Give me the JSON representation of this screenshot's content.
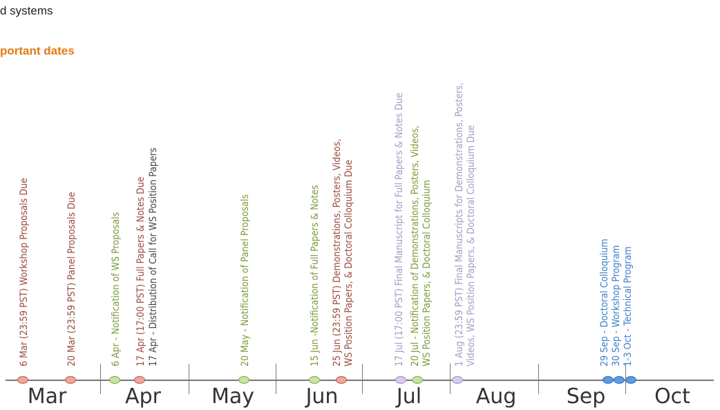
{
  "header": {
    "fragment": "d systems",
    "section_title": "portant dates"
  },
  "colors": {
    "red": "#9a4a3c",
    "green": "#7a9a3a",
    "dark": "#444444",
    "lavender": "#a69ac4",
    "blue": "#3a80c9"
  },
  "months": [
    "Mar",
    "Apr",
    "May",
    "Jun",
    "Jul",
    "Aug",
    "Sep",
    "Oct"
  ],
  "events": [
    {
      "name": "event-workshop-proposals",
      "color": "red",
      "lines": [
        "6 Mar (23:59 PST) Workshop Proposals Due"
      ]
    },
    {
      "name": "event-panel-proposals",
      "color": "red",
      "lines": [
        "20 Mar (23:59 PST) Panel Proposals Due"
      ]
    },
    {
      "name": "event-ws-notification",
      "color": "green",
      "lines": [
        "6 Apr - Notification of WS Proposals"
      ]
    },
    {
      "name": "event-full-papers-due",
      "color": "red",
      "lines": [
        "17 Apr (17:00 PST) Full Papers & Notes Due"
      ]
    },
    {
      "name": "event-call-distribution",
      "color": "dark",
      "lines": [
        "17 Apr - Distribution of Call for WS Position Papers"
      ]
    },
    {
      "name": "event-panel-notification",
      "color": "green",
      "lines": [
        "20 May - Notification of Panel Proposals"
      ]
    },
    {
      "name": "event-papers-notification",
      "color": "green",
      "lines": [
        "15 Jun -Notification of Full Papers & Notes"
      ]
    },
    {
      "name": "event-demos-due",
      "color": "red",
      "lines": [
        "25 Jun (23:59 PST) Demonstrations, Posters, Videos,",
        "WS Position Papers, & Doctoral Colloquium Due"
      ]
    },
    {
      "name": "event-final-manuscript",
      "color": "lavender",
      "lines": [
        "17 Jul (17:00 PST)  Final Manuscript for Full Papers & Notes Due"
      ]
    },
    {
      "name": "event-demos-notification",
      "color": "green",
      "lines": [
        "20 Jul - Notification of Demonstrations, Posters, Videos,",
        "WS Position Papers,  & Doctoral Colloquium"
      ]
    },
    {
      "name": "event-final-manuscripts-demos",
      "color": "lavender",
      "lines": [
        "1 Aug (23:59 PST) Final Manuscripts for Demonstrations, Posters,",
        "Videos, WS Position Papers,  & Doctoral Colloquium Due"
      ]
    },
    {
      "name": "event-doctoral-colloquium",
      "color": "blue",
      "lines": [
        "29 Sep - Doctoral Colloquium",
        "30 Sep - Workshop Program",
        "1-3 Oct - Technical Program"
      ]
    }
  ],
  "markers": [
    "red",
    "red",
    "green",
    "red",
    "green",
    "green",
    "red",
    "lavender",
    "green",
    "lavender",
    "blue",
    "blue",
    "blue"
  ]
}
